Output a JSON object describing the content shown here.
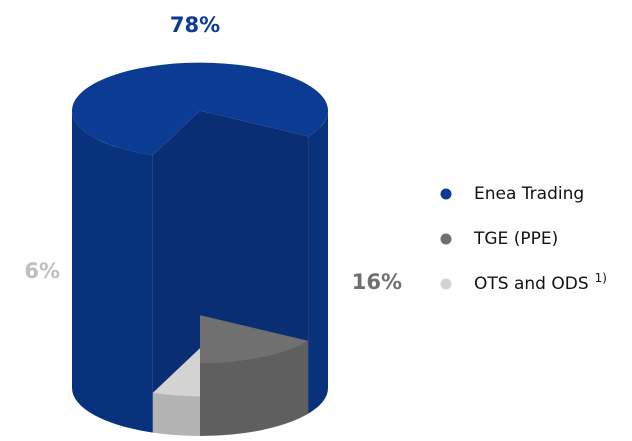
{
  "chart_data": {
    "type": "pie",
    "series": [
      {
        "name": "Enea Trading",
        "color": "#0b3b93",
        "values": [
          78
        ],
        "value_labels": [
          "78%"
        ]
      },
      {
        "name": "TGE (PPE)",
        "color": "#707070",
        "values": [
          16
        ],
        "value_labels": [
          "16%"
        ]
      },
      {
        "name": "OTS and ODS",
        "note": "1)",
        "color": "#d3d3d3",
        "values": [
          6
        ],
        "value_labels": [
          "6%"
        ]
      }
    ],
    "legend": "right"
  }
}
